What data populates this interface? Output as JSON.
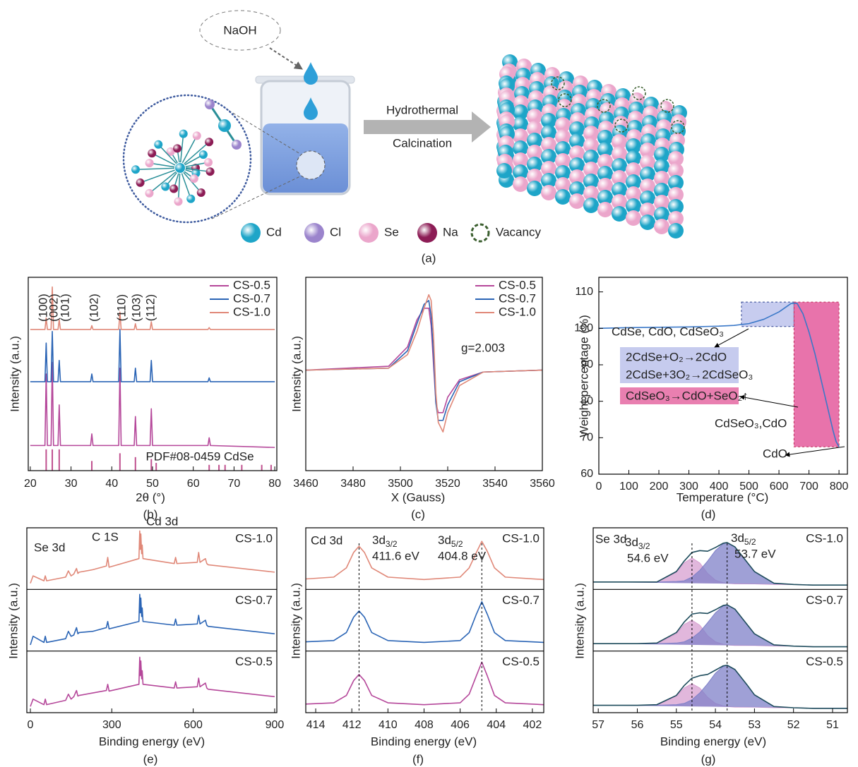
{
  "diagram": {
    "bubble": "NaOH",
    "arrow_top": "Hydrothermal",
    "arrow_bottom": "Calcination",
    "caption": "(a)",
    "legend": [
      {
        "label": "Cd",
        "color": "#1ea5c8",
        "marker": "sphere"
      },
      {
        "label": "Cl",
        "color": "#9b84cc",
        "marker": "sphere"
      },
      {
        "label": "Se",
        "color": "#eba6cb",
        "marker": "sphere"
      },
      {
        "label": "Na",
        "color": "#8c1c55",
        "marker": "sphere"
      },
      {
        "label": "Vacancy",
        "color": "#3a5e2e",
        "marker": "dashed-circle"
      }
    ]
  },
  "chart_data": [
    {
      "type": "line",
      "caption": "(b)",
      "xlabel": "2θ (°)",
      "ylabel": "Intensity (a.u.)",
      "xlim": [
        19.5,
        80.5
      ],
      "xticks": [
        20,
        30,
        40,
        50,
        60,
        70,
        80
      ],
      "ylim": [
        0,
        100
      ],
      "legend": "upper right",
      "x": [
        20,
        23.6,
        23.9,
        24.2,
        25.1,
        25.4,
        25.7,
        26.8,
        27.1,
        27.4,
        34.8,
        35.1,
        35.4,
        41.7,
        42.0,
        42.3,
        45.5,
        45.8,
        46.1,
        49.4,
        49.7,
        50.0,
        63.6,
        63.9,
        64.2,
        80
      ],
      "series": [
        {
          "name": "CS-0.5",
          "color": "#b5479a",
          "values": [
            13,
            13,
            50,
            13,
            13,
            56,
            13,
            13,
            34,
            13,
            13,
            19,
            13,
            13,
            53,
            13,
            13,
            28,
            13,
            13,
            32,
            13,
            13,
            17,
            13,
            12
          ]
        },
        {
          "name": "CS-0.7",
          "color": "#2a64b5",
          "values": [
            46,
            46,
            66,
            46,
            46,
            72,
            46,
            46,
            57,
            46,
            46,
            50,
            46,
            46,
            73,
            46,
            46,
            53,
            46,
            46,
            57,
            46,
            46,
            48,
            46,
            46
          ]
        },
        {
          "name": "CS-1.0",
          "color": "#e08878",
          "values": [
            73,
            73,
            79,
            73,
            73,
            95,
            73,
            73,
            78,
            73,
            73,
            75,
            73,
            73,
            82,
            73,
            73,
            76,
            73,
            73,
            77,
            73,
            73,
            74,
            73,
            73
          ]
        }
      ],
      "peak_labels": [
        "(100)",
        "(002)",
        "(101)",
        "(102)",
        "(110)",
        "(103)",
        "(112)"
      ],
      "peak_label_color": "#1aa0c8",
      "reference": {
        "name": "PDF#08-0459 CdSe",
        "color": "#c0518f",
        "x": [
          23.9,
          25.4,
          27.1,
          35.1,
          42.0,
          45.8,
          49.7,
          50.9,
          63.9,
          66.3,
          67.8,
          71.9,
          76.8,
          79.1
        ],
        "values": [
          11,
          11,
          11,
          5,
          9,
          7,
          6,
          4,
          3,
          3,
          3,
          3,
          3,
          3
        ]
      }
    },
    {
      "type": "line",
      "caption": "(c)",
      "xlabel": "X (Gauss)",
      "ylabel": "Intensity (a.u.)",
      "xlim": [
        3460,
        3560
      ],
      "xticks": [
        3460,
        3480,
        3500,
        3520,
        3540,
        3560
      ],
      "ylim": [
        0,
        100
      ],
      "legend": "upper right",
      "x": [
        3460,
        3495,
        3503,
        3507,
        3510,
        3512,
        3513,
        3514,
        3515,
        3516,
        3518,
        3520,
        3525,
        3535,
        3560
      ],
      "series": [
        {
          "name": "CS-0.5",
          "color": "#b5479a",
          "values": [
            52,
            54,
            64,
            78,
            84,
            84,
            75,
            55,
            35,
            30,
            30,
            38,
            47,
            51,
            52
          ]
        },
        {
          "name": "CS-0.7",
          "color": "#2a64b5",
          "values": [
            52,
            53,
            62,
            76,
            86,
            88,
            80,
            60,
            35,
            26,
            26,
            34,
            46,
            51,
            52
          ]
        },
        {
          "name": "CS-1.0",
          "color": "#e08878",
          "values": [
            52,
            53,
            60,
            72,
            84,
            91,
            88,
            70,
            40,
            25,
            20,
            30,
            44,
            51,
            52
          ]
        }
      ],
      "annotations": [
        "g=2.003"
      ]
    },
    {
      "type": "line",
      "caption": "(d)",
      "xlabel": "Temperature (°C)",
      "ylabel": "Weight percentage (%)",
      "xlim": [
        0,
        828
      ],
      "xticks": [
        0,
        100,
        200,
        300,
        400,
        500,
        600,
        700,
        800
      ],
      "ylim": [
        60,
        114
      ],
      "yticks": [
        60,
        70,
        80,
        90,
        100,
        110
      ],
      "x": [
        0,
        100,
        200,
        300,
        400,
        450,
        500,
        550,
        600,
        640,
        660,
        680,
        700,
        720,
        740,
        760,
        780,
        790,
        800
      ],
      "series": [
        {
          "color": "#3a78c8",
          "values": [
            100,
            100.2,
            100.3,
            100.4,
            100.6,
            100.8,
            101.3,
            102.5,
            104.5,
            106.8,
            106.9,
            104,
            99,
            93,
            86,
            79,
            72,
            69,
            67.5
          ]
        }
      ],
      "regions": [
        {
          "x": [
            475,
            650
          ],
          "y": [
            100.5,
            107.2
          ],
          "color": "#c7ccef"
        },
        {
          "x": [
            650,
            800
          ],
          "y": [
            67.5,
            107.2
          ],
          "color": "#e873ab"
        }
      ],
      "annotations": [
        "CdSe, CdO, CdSeO₃",
        "2CdSe+O₂→2CdO",
        "2CdSe+3O₂→2CdSeO₃",
        "CdSeO₃→CdO+SeO₂↑",
        "CdSeO₃,CdO",
        "CdO"
      ]
    },
    {
      "type": "line",
      "caption": "(e)",
      "xlabel": "Binding energy (eV)",
      "ylabel": "Intensity (a.u.)",
      "xlim": [
        -13,
        908
      ],
      "xticks": [
        0,
        300,
        600,
        900
      ],
      "ylim": [
        0,
        100
      ],
      "stacked_panels": true,
      "x": [
        0,
        10,
        50,
        55,
        60,
        130,
        140,
        150,
        160,
        170,
        175,
        180,
        230,
        280,
        285,
        290,
        400,
        403,
        405,
        407,
        410,
        412,
        415,
        530,
        535,
        540,
        615,
        620,
        625,
        645,
        650,
        655,
        900
      ],
      "series": [
        {
          "name": "CS-1.0",
          "color": "#e08878",
          "values": [
            10,
            22,
            14,
            22,
            14,
            20,
            30,
            22,
            25,
            34,
            26,
            28,
            32,
            38,
            52,
            36,
            50,
            95,
            65,
            90,
            58,
            72,
            50,
            42,
            52,
            42,
            44,
            60,
            44,
            50,
            42,
            40,
            28
          ]
        },
        {
          "name": "CS-0.7",
          "color": "#2a64b5",
          "values": [
            10,
            24,
            14,
            24,
            14,
            20,
            32,
            24,
            26,
            38,
            28,
            30,
            32,
            38,
            48,
            36,
            48,
            92,
            62,
            86,
            56,
            70,
            48,
            42,
            52,
            42,
            44,
            58,
            44,
            50,
            42,
            40,
            28
          ]
        },
        {
          "name": "CS-0.5",
          "color": "#b5479a",
          "values": [
            10,
            22,
            13,
            22,
            13,
            20,
            30,
            22,
            26,
            36,
            27,
            28,
            32,
            36,
            46,
            35,
            46,
            90,
            60,
            84,
            55,
            68,
            46,
            40,
            50,
            40,
            42,
            56,
            42,
            48,
            40,
            38,
            26
          ]
        }
      ],
      "annotations": [
        "Se 3d",
        "C 1S",
        "Cd 3d"
      ]
    },
    {
      "type": "line",
      "caption": "(f)",
      "xlabel": "Binding energy (eV)",
      "ylabel": "Intensity (a.u.)",
      "xlim": [
        414.55,
        401.37
      ],
      "xticks": [
        414,
        412,
        410,
        408,
        406,
        404,
        402
      ],
      "ylim": [
        0,
        100
      ],
      "stacked_panels": true,
      "x": [
        414.55,
        413,
        412.3,
        411.9,
        411.6,
        411.3,
        410.9,
        410,
        408,
        406,
        405.5,
        405.1,
        404.8,
        404.5,
        404.1,
        403.5,
        401.37
      ],
      "series": [
        {
          "name": "CS-1.0",
          "color": "#e08878",
          "values": [
            17,
            20,
            35,
            60,
            70,
            60,
            35,
            20,
            16,
            20,
            35,
            60,
            78,
            62,
            35,
            20,
            16
          ]
        },
        {
          "name": "CS-0.7",
          "color": "#2a64b5",
          "values": [
            15,
            17,
            30,
            55,
            65,
            55,
            30,
            17,
            14,
            17,
            30,
            60,
            80,
            60,
            30,
            17,
            14
          ]
        },
        {
          "name": "CS-0.5",
          "color": "#b5479a",
          "values": [
            14,
            16,
            28,
            52,
            62,
            52,
            28,
            16,
            13,
            16,
            30,
            60,
            82,
            60,
            28,
            16,
            13
          ]
        }
      ],
      "reference_lines": [
        411.6,
        404.8
      ],
      "annotations": [
        "Cd 3d",
        {
          "text": "3d",
          "sub": "3/2"
        },
        "411.6 eV",
        {
          "text": "3d",
          "sub": "5/2"
        },
        "404.8 eV"
      ]
    },
    {
      "type": "line",
      "caption": "(g)",
      "xlabel": "Binding energy (eV)",
      "ylabel": "Intensity (a.u.)",
      "xlim": [
        57.13,
        50.62
      ],
      "xticks": [
        57,
        56,
        55,
        54,
        53,
        52,
        51
      ],
      "ylim": [
        0,
        100
      ],
      "x": [
        57.13,
        56.5,
        56,
        55.5,
        55,
        54.8,
        54.6,
        54.4,
        54.2,
        54,
        53.8,
        53.7,
        53.5,
        53.2,
        53,
        52.5,
        52,
        51.5,
        50.62
      ],
      "panels": [
        {
          "name": "CS-1.0",
          "color": "#e08878",
          "series": [
            {
              "color": "#d79fd0",
              "fill": true,
              "values": [
                12,
                12,
                12,
                12,
                28,
                43,
                51,
                43,
                26,
                15,
                11,
                10,
                9,
                9,
                9,
                8,
                8,
                7,
                7
              ]
            },
            {
              "color": "#7f80c8",
              "fill": true,
              "values": [
                12,
                12,
                12,
                12,
                13,
                14,
                20,
                31,
                46,
                63,
                74,
                76,
                69,
                45,
                29,
                10,
                8,
                7,
                7
              ]
            },
            {
              "color": "#1e4c5c",
              "values": [
                12,
                12,
                12,
                12,
                29,
                46,
                60,
                63,
                62,
                68,
                75,
                76,
                69,
                45,
                29,
                10,
                8,
                7,
                7
              ]
            }
          ]
        },
        {
          "name": "CS-0.7",
          "color": "#2a64b5",
          "series": [
            {
              "color": "#d79fd0",
              "fill": true,
              "values": [
                12,
                12,
                12,
                12,
                28,
                43,
                50,
                42,
                25,
                15,
                11,
                10,
                9,
                9,
                9,
                8,
                8,
                7,
                7
              ]
            },
            {
              "color": "#7f80c8",
              "fill": true,
              "values": [
                12,
                12,
                12,
                12,
                13,
                15,
                21,
                31,
                46,
                62,
                73,
                75,
                68,
                44,
                28,
                10,
                8,
                7,
                7
              ]
            },
            {
              "color": "#1e4c5c",
              "values": [
                12,
                12,
                12,
                13,
                30,
                47,
                60,
                62,
                61,
                67,
                74,
                75,
                68,
                44,
                28,
                10,
                8,
                7,
                7
              ]
            }
          ]
        },
        {
          "name": "CS-0.5",
          "color": "#b5479a",
          "series": [
            {
              "color": "#d79fd0",
              "fill": true,
              "values": [
                12,
                12,
                12,
                12,
                27,
                40,
                47,
                40,
                25,
                15,
                11,
                10,
                9,
                9,
                9,
                8,
                8,
                7,
                7
              ]
            },
            {
              "color": "#7f80c8",
              "fill": true,
              "values": [
                12,
                12,
                12,
                12,
                13,
                15,
                21,
                32,
                47,
                64,
                75,
                77,
                70,
                46,
                29,
                10,
                8,
                7,
                7
              ]
            },
            {
              "color": "#1e4c5c",
              "values": [
                12,
                12,
                12,
                13,
                28,
                44,
                56,
                60,
                62,
                69,
                76,
                77,
                70,
                46,
                29,
                10,
                8,
                7,
                7
              ]
            }
          ]
        }
      ],
      "reference_lines": [
        54.6,
        53.7
      ],
      "annotations": [
        "Se 3d",
        {
          "text": "3d",
          "sub": "3/2"
        },
        "54.6 eV",
        {
          "text": "3d",
          "sub": "5/2"
        },
        "53.7 eV"
      ]
    }
  ]
}
